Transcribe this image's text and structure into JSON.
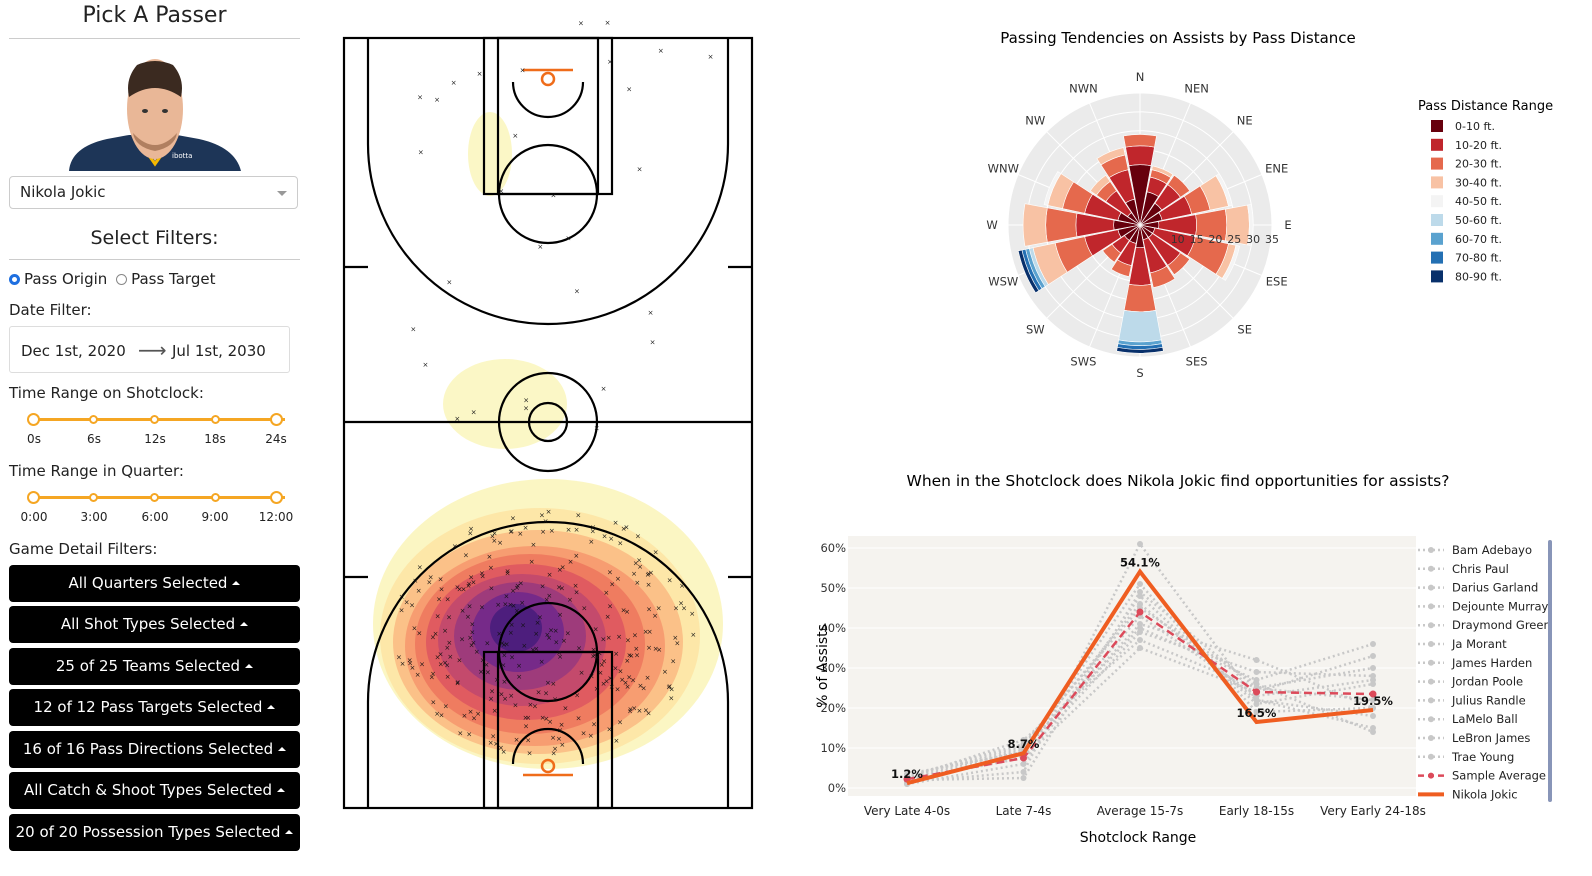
{
  "sidebar": {
    "title": "Pick A Passer",
    "player_select": "Nikola Jokic",
    "filters_title": "Select Filters:",
    "radio": {
      "origin": "Pass Origin",
      "target": "Pass Target"
    },
    "date_label": "Date Filter:",
    "date_start": "Dec 1st, 2020",
    "date_arrow": "⟶",
    "date_end": "Jul 1st, 2030",
    "shotclock_label": "Time Range on Shotclock:",
    "shotclock_ticks": [
      "0s",
      "6s",
      "12s",
      "18s",
      "24s"
    ],
    "quarter_label": "Time Range in Quarter:",
    "quarter_ticks": [
      "0:00",
      "3:00",
      "6:00",
      "9:00",
      "12:00"
    ],
    "game_detail_label": "Game Detail Filters:",
    "buttons": [
      "All Quarters Selected",
      "All Shot Types Selected",
      "25 of 25 Teams Selected",
      "12 of 12 Pass Targets Selected",
      "16 of 16 Pass Directions Selected",
      "All Catch & Shoot Types Selected",
      "20 of 20 Possession Types Selected"
    ],
    "colors": {
      "slider": "#f5a623",
      "button_bg": "#000000"
    }
  },
  "polar": {
    "title": "Passing Tendencies on Assists by Pass Distance",
    "directions": [
      "N",
      "NEN",
      "NE",
      "ENE",
      "E",
      "ESE",
      "SE",
      "SES",
      "S",
      "SWS",
      "SW",
      "WSW",
      "W",
      "WNW",
      "NW",
      "NWN"
    ],
    "radial_ticks": [
      10,
      15,
      20,
      25,
      30,
      35
    ],
    "legend_title": "Pass Distance Range",
    "legend": [
      {
        "label": "0-10 ft.",
        "color": "#67000d"
      },
      {
        "label": "10-20 ft.",
        "color": "#c0262c"
      },
      {
        "label": "20-30 ft.",
        "color": "#e5694d"
      },
      {
        "label": "30-40 ft.",
        "color": "#f8c2a4"
      },
      {
        "label": "40-50 ft.",
        "color": "#f4f4f4"
      },
      {
        "label": "50-60 ft.",
        "color": "#bddaea"
      },
      {
        "label": "60-70 ft.",
        "color": "#5aa2cf"
      },
      {
        "label": "70-80 ft.",
        "color": "#2470b3"
      },
      {
        "label": "80-90 ft.",
        "color": "#08306b"
      }
    ],
    "stacks": [
      [
        16,
        5,
        3,
        0,
        0,
        0,
        0,
        0,
        0
      ],
      [
        9,
        4,
        2,
        1,
        0,
        0,
        0,
        0,
        0
      ],
      [
        7,
        6,
        3,
        0,
        0,
        0,
        0,
        0,
        0
      ],
      [
        6,
        8,
        5,
        5,
        1,
        0,
        0,
        0,
        0
      ],
      [
        5,
        10,
        8,
        6,
        1,
        0,
        0,
        0,
        0
      ],
      [
        4,
        11,
        9,
        2,
        1,
        0,
        0,
        0,
        0
      ],
      [
        4,
        9,
        3,
        0,
        0,
        0,
        0,
        0,
        0
      ],
      [
        4,
        9,
        4,
        0,
        0,
        0,
        0,
        0,
        0
      ],
      [
        6,
        10,
        7,
        0,
        0,
        8,
        1,
        1,
        1
      ],
      [
        5,
        6,
        3,
        0,
        0,
        0,
        0,
        0,
        0
      ],
      [
        5,
        4,
        3,
        0,
        0,
        0,
        0,
        0,
        0
      ],
      [
        6,
        9,
        8,
        6,
        0,
        1,
        1,
        1,
        1
      ],
      [
        7,
        10,
        8,
        6,
        0,
        0,
        0,
        0,
        0
      ],
      [
        6,
        9,
        6,
        4,
        1,
        0,
        0,
        0,
        0
      ],
      [
        4,
        7,
        3,
        2,
        0,
        0,
        0,
        0,
        0
      ],
      [
        7,
        8,
        4,
        2,
        0,
        0,
        0,
        0,
        0
      ]
    ]
  },
  "court": {
    "colors": {
      "line": "#000000",
      "rim": "#ef6c1a"
    },
    "density_colors": [
      "#fbf6c0",
      "#fde6a6",
      "#fbbf86",
      "#f79b70",
      "#ee7a5f",
      "#de5a60",
      "#c24a6d",
      "#9c3a7c",
      "#74298a",
      "#4b1d7c"
    ]
  },
  "chart_data": {
    "type": "line",
    "title": "When in the Shotclock does Nikola Jokic find opportunities for assists?",
    "xlabel": "Shotclock Range",
    "ylabel": "% of Assists",
    "categories": [
      "Very Late 4-0s",
      "Late 7-4s",
      "Average 15-7s",
      "Early 18-15s",
      "Very Early 24-18s"
    ],
    "yticks": [
      "0%",
      "10%",
      "20%",
      "30%",
      "40%",
      "50%",
      "60%"
    ],
    "ylim": [
      0,
      65
    ],
    "series": [
      {
        "name": "Bam Adebayo",
        "values": [
          2.0,
          9.5,
          41,
          32,
          20
        ],
        "style": "dotted",
        "color": "#c8c8c8"
      },
      {
        "name": "Chris Paul",
        "values": [
          3.0,
          10.5,
          46,
          22,
          18
        ],
        "style": "dotted",
        "color": "#c8c8c8"
      },
      {
        "name": "Darius Garland",
        "values": [
          1.5,
          4.0,
          61,
          22,
          15
        ],
        "style": "dotted",
        "color": "#c8c8c8"
      },
      {
        "name": "Dejounte Murray",
        "values": [
          2.5,
          12.0,
          37,
          25,
          30
        ],
        "style": "dotted",
        "color": "#c8c8c8"
      },
      {
        "name": "Draymond Green",
        "values": [
          1.0,
          6.0,
          48,
          21,
          26
        ],
        "style": "dotted",
        "color": "#c8c8c8"
      },
      {
        "name": "Ja Morant",
        "values": [
          3.5,
          9.0,
          43,
          23,
          27
        ],
        "style": "dotted",
        "color": "#c8c8c8"
      },
      {
        "name": "James Harden",
        "values": [
          2.0,
          2.5,
          49,
          25,
          22
        ],
        "style": "dotted",
        "color": "#c8c8c8"
      },
      {
        "name": "Jordan Poole",
        "values": [
          1.5,
          8.0,
          39,
          29,
          28
        ],
        "style": "dotted",
        "color": "#c8c8c8"
      },
      {
        "name": "Julius Randle",
        "values": [
          2.0,
          7.5,
          35,
          24,
          33
        ],
        "style": "dotted",
        "color": "#c8c8c8"
      },
      {
        "name": "LaMelo Ball",
        "values": [
          3.0,
          11.0,
          45,
          26,
          14
        ],
        "style": "dotted",
        "color": "#c8c8c8"
      },
      {
        "name": "LeBron James",
        "values": [
          1.0,
          9.0,
          51,
          19,
          20
        ],
        "style": "dotted",
        "color": "#c8c8c8"
      },
      {
        "name": "Trae Young",
        "values": [
          2.5,
          10.0,
          40,
          27,
          36
        ],
        "style": "dotted",
        "color": "#c8c8c8"
      },
      {
        "name": "Sample Average",
        "values": [
          2.2,
          7.5,
          44,
          24,
          23.5
        ],
        "style": "dashed",
        "color": "#dc4a5a"
      },
      {
        "name": "Nikola Jokic",
        "values": [
          1.2,
          8.7,
          54.1,
          16.5,
          19.5
        ],
        "style": "solid",
        "color": "#ef5d21"
      }
    ],
    "data_labels": [
      "1.2%",
      "8.7%",
      "54.1%",
      "16.5%",
      "19.5%"
    ]
  }
}
